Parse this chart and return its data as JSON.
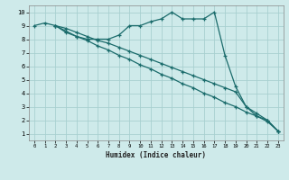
{
  "xlabel": "Humidex (Indice chaleur)",
  "bg_color": "#ceeaea",
  "grid_color": "#a8d0d0",
  "line_color": "#1a6b6b",
  "xlim": [
    -0.5,
    23.5
  ],
  "ylim": [
    0.5,
    10.5
  ],
  "xticks": [
    0,
    1,
    2,
    3,
    4,
    5,
    6,
    7,
    8,
    9,
    10,
    11,
    12,
    13,
    14,
    15,
    16,
    17,
    18,
    19,
    20,
    21,
    22,
    23
  ],
  "yticks": [
    1,
    2,
    3,
    4,
    5,
    6,
    7,
    8,
    9,
    10
  ],
  "line1_x": [
    0,
    1,
    2,
    3,
    4,
    5,
    6,
    7,
    8,
    9,
    10,
    11,
    12,
    13,
    14,
    15,
    16,
    17,
    18,
    19,
    20,
    21,
    22,
    23
  ],
  "line1_y": [
    9,
    9.2,
    9,
    8.5,
    8.2,
    8.0,
    8.0,
    8.0,
    8.3,
    9.0,
    9.0,
    9.3,
    9.5,
    10.0,
    9.5,
    9.5,
    9.5,
    10.0,
    6.8,
    4.5,
    3.0,
    2.3,
    2.0,
    1.2
  ],
  "line2_x": [
    2,
    3,
    4,
    5,
    6,
    7,
    8,
    9,
    10,
    11,
    12,
    13,
    14,
    15,
    16,
    17,
    18,
    19,
    20,
    21,
    22,
    23
  ],
  "line2_y": [
    9.0,
    8.6,
    8.2,
    7.9,
    7.5,
    7.2,
    6.8,
    6.5,
    6.1,
    5.8,
    5.4,
    5.1,
    4.7,
    4.4,
    4.0,
    3.7,
    3.3,
    3.0,
    2.6,
    2.3,
    1.9,
    1.2
  ],
  "line3_x": [
    2,
    3,
    4,
    5,
    6,
    7,
    8,
    9,
    10,
    11,
    12,
    13,
    14,
    15,
    16,
    17,
    18,
    19,
    20,
    21,
    22,
    23
  ],
  "line3_y": [
    9.0,
    8.8,
    8.5,
    8.2,
    7.9,
    7.7,
    7.4,
    7.1,
    6.8,
    6.5,
    6.2,
    5.9,
    5.6,
    5.3,
    5.0,
    4.7,
    4.4,
    4.1,
    3.0,
    2.5,
    2.0,
    1.2
  ]
}
